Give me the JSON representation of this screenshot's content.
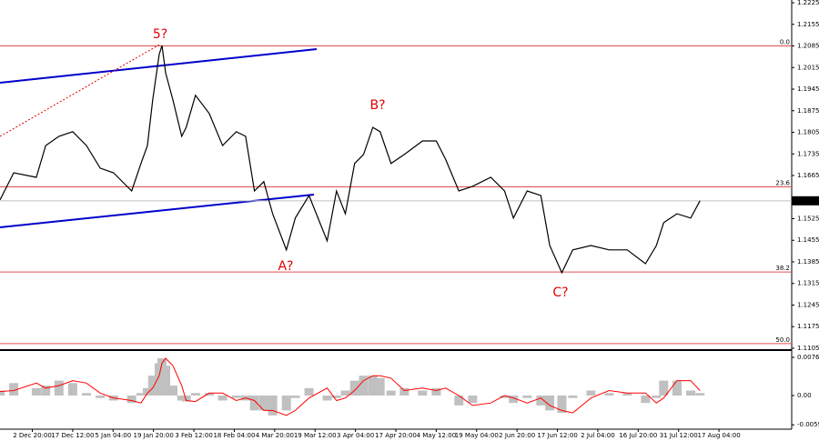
{
  "chart_data": [
    {
      "type": "line",
      "x": [
        0,
        3.4,
        9,
        11.3,
        14.6,
        18,
        21.4,
        24.8,
        28.1,
        32.6,
        34.9,
        36.5,
        37.8,
        39.4,
        40.1,
        41,
        42.8,
        45,
        46.1,
        48.4,
        51.8,
        55.1,
        58.5,
        60.8,
        63,
        65.3,
        67.5,
        70.9,
        73.1,
        76.5,
        81,
        83.3,
        85.5,
        87.8,
        90,
        92.3,
        94.1,
        96.8,
        100.1,
        104.6,
        108,
        110.3,
        113.6,
        117,
        121.5,
        124.9,
        127.1,
        130.5,
        133.9,
        136.1,
        139.1,
        141.8,
        146.3,
        150.8,
        155.3,
        159.8,
        162.5,
        164.3,
        167.6,
        171,
        173.3
      ],
      "values": [
        1.1586,
        1.1674,
        1.1659,
        1.1762,
        1.1792,
        1.1807,
        1.1762,
        1.1689,
        1.1674,
        1.1615,
        1.1704,
        1.1762,
        1.191,
        1.2057,
        1.2087,
        1.1998,
        1.191,
        1.1792,
        1.1821,
        1.1925,
        1.1866,
        1.1762,
        1.1807,
        1.1792,
        1.1615,
        1.1645,
        1.1541,
        1.1424,
        1.1527,
        1.16,
        1.1453,
        1.1615,
        1.1541,
        1.1704,
        1.1733,
        1.1821,
        1.1807,
        1.1704,
        1.1733,
        1.1777,
        1.1777,
        1.1718,
        1.1615,
        1.163,
        1.1659,
        1.1615,
        1.1527,
        1.1615,
        1.16,
        1.1438,
        1.135,
        1.1424,
        1.1438,
        1.1424,
        1.1424,
        1.1379,
        1.1438,
        1.1512,
        1.1541,
        1.1527,
        1.1583
      ],
      "color": "#000000",
      "xlim": [
        0,
        196
      ],
      "ylim": [
        1.1099,
        1.2234
      ],
      "yticks": [
        1.2225,
        1.2155,
        1.2085,
        1.2015,
        1.1945,
        1.1875,
        1.1805,
        1.1735,
        1.1665,
        1.1525,
        1.1455,
        1.1385,
        1.1315,
        1.1245,
        1.1175,
        1.1105
      ],
      "levels": [
        {
          "label": "0.0",
          "value": 1.2085
        },
        {
          "label": "23.6",
          "value": 1.1628
        },
        {
          "label": "38.2",
          "value": 1.1352
        },
        {
          "label": "50.0",
          "value": 1.112
        }
      ],
      "last_price": 1.1583,
      "annotations": [
        "5?",
        "B?",
        "A?",
        "C?"
      ]
    },
    {
      "type": "bar",
      "x": [
        0,
        3.4,
        9,
        11.3,
        14.6,
        18,
        21.4,
        24.8,
        28.1,
        32.6,
        34.9,
        36.5,
        37.8,
        39.4,
        40.1,
        41,
        42.8,
        45,
        46.1,
        48.4,
        51.8,
        55.1,
        58.5,
        60.8,
        63,
        65.3,
        67.5,
        70.9,
        73.1,
        76.5,
        81,
        83.3,
        85.5,
        87.8,
        90,
        92.3,
        94.1,
        96.8,
        100.1,
        104.6,
        108,
        110.3,
        113.6,
        117,
        121.5,
        124.9,
        127.1,
        130.5,
        133.9,
        136.1,
        139.1,
        141.8,
        146.3,
        150.8,
        155.3,
        159.8,
        162.5,
        164.3,
        167.6,
        171,
        173.3
      ],
      "series": [
        {
          "type": "bar",
          "color": "#c0c0c0",
          "values": [
            0.001,
            0.0025,
            0.0015,
            0.002,
            0.003,
            0.0025,
            0.0005,
            -0.0005,
            -0.001,
            -0.0015,
            0.0005,
            0.0015,
            0.004,
            0.0065,
            0.0075,
            0.006,
            0.002,
            -0.001,
            -0.0012,
            0.0005,
            0.0005,
            -0.001,
            -0.0005,
            -0.001,
            -0.003,
            -0.003,
            -0.004,
            -0.003,
            -0.0005,
            0.0015,
            -0.001,
            -0.0005,
            0.001,
            0.003,
            0.004,
            0.004,
            0.0035,
            0.001,
            0.0015,
            0.001,
            0.0015,
            0,
            -0.002,
            -0.0015,
            0,
            -0.0005,
            -0.0015,
            -0.0005,
            -0.002,
            -0.003,
            -0.0035,
            -0.0005,
            0.001,
            0.0005,
            0.0005,
            -0.0015,
            -0.0005,
            0.003,
            0.003,
            0.001,
            0.0005
          ]
        },
        {
          "type": "line",
          "color": "#ff0000",
          "values": [
            0.0008,
            0.001,
            0.0025,
            0.0015,
            0.002,
            0.003,
            0.0025,
            0.0005,
            -0.0005,
            -0.001,
            -0.0015,
            0.0005,
            0.0015,
            0.004,
            0.0065,
            0.0075,
            0.006,
            0.002,
            -0.001,
            -0.0012,
            0.0005,
            0.0005,
            -0.001,
            -0.0005,
            -0.001,
            -0.003,
            -0.003,
            -0.004,
            -0.003,
            -0.0005,
            0.0015,
            -0.001,
            -0.0005,
            0.001,
            0.003,
            0.004,
            0.004,
            0.0035,
            0.001,
            0.0015,
            0.001,
            0.0015,
            0,
            -0.002,
            -0.0015,
            0,
            -0.0005,
            -0.0015,
            -0.0005,
            -0.002,
            -0.003,
            -0.0035,
            -0.0005,
            0.001,
            0.0005,
            0.0005,
            -0.0015,
            -0.0005,
            0.003,
            0.003,
            0.001
          ]
        }
      ],
      "xlim": [
        0,
        196
      ],
      "ylim": [
        -0.00641,
        0.00879
      ],
      "yticks": [
        0.00769,
        {
          "value": 0,
          "label": "0.00"
        },
        -0.0059
      ],
      "xticks": [
        {
          "value": 8,
          "label": "2 Dec 20:00"
        },
        {
          "value": 18,
          "label": "17 Dec 12:00"
        },
        {
          "value": 28,
          "label": "5 Jan 04:00"
        },
        {
          "value": 38,
          "label": "19 Jan 20:00"
        },
        {
          "value": 48,
          "label": "3 Feb 12:00"
        },
        {
          "value": 58,
          "label": "18 Feb 04:00"
        },
        {
          "value": 68,
          "label": "4 Mar 20:00"
        },
        {
          "value": 78,
          "label": "19 Mar 12:00"
        },
        {
          "value": 88,
          "label": "3 Apr 04:00"
        },
        {
          "value": 98,
          "label": "17 Apr 20:00"
        },
        {
          "value": 108,
          "label": "4 May 12:00"
        },
        {
          "value": 118,
          "label": "19 May 04:00"
        },
        {
          "value": 128,
          "label": "2 Jun 20:00"
        },
        {
          "value": 138,
          "label": "17 Jun 12:00"
        },
        {
          "value": 148,
          "label": "2 Jul 04:00"
        },
        {
          "value": 158,
          "label": "16 Jul 20:00"
        },
        {
          "value": 168,
          "label": "31 Jul 12:00"
        },
        {
          "value": 178,
          "label": "17 Aug 04:00"
        }
      ]
    }
  ]
}
